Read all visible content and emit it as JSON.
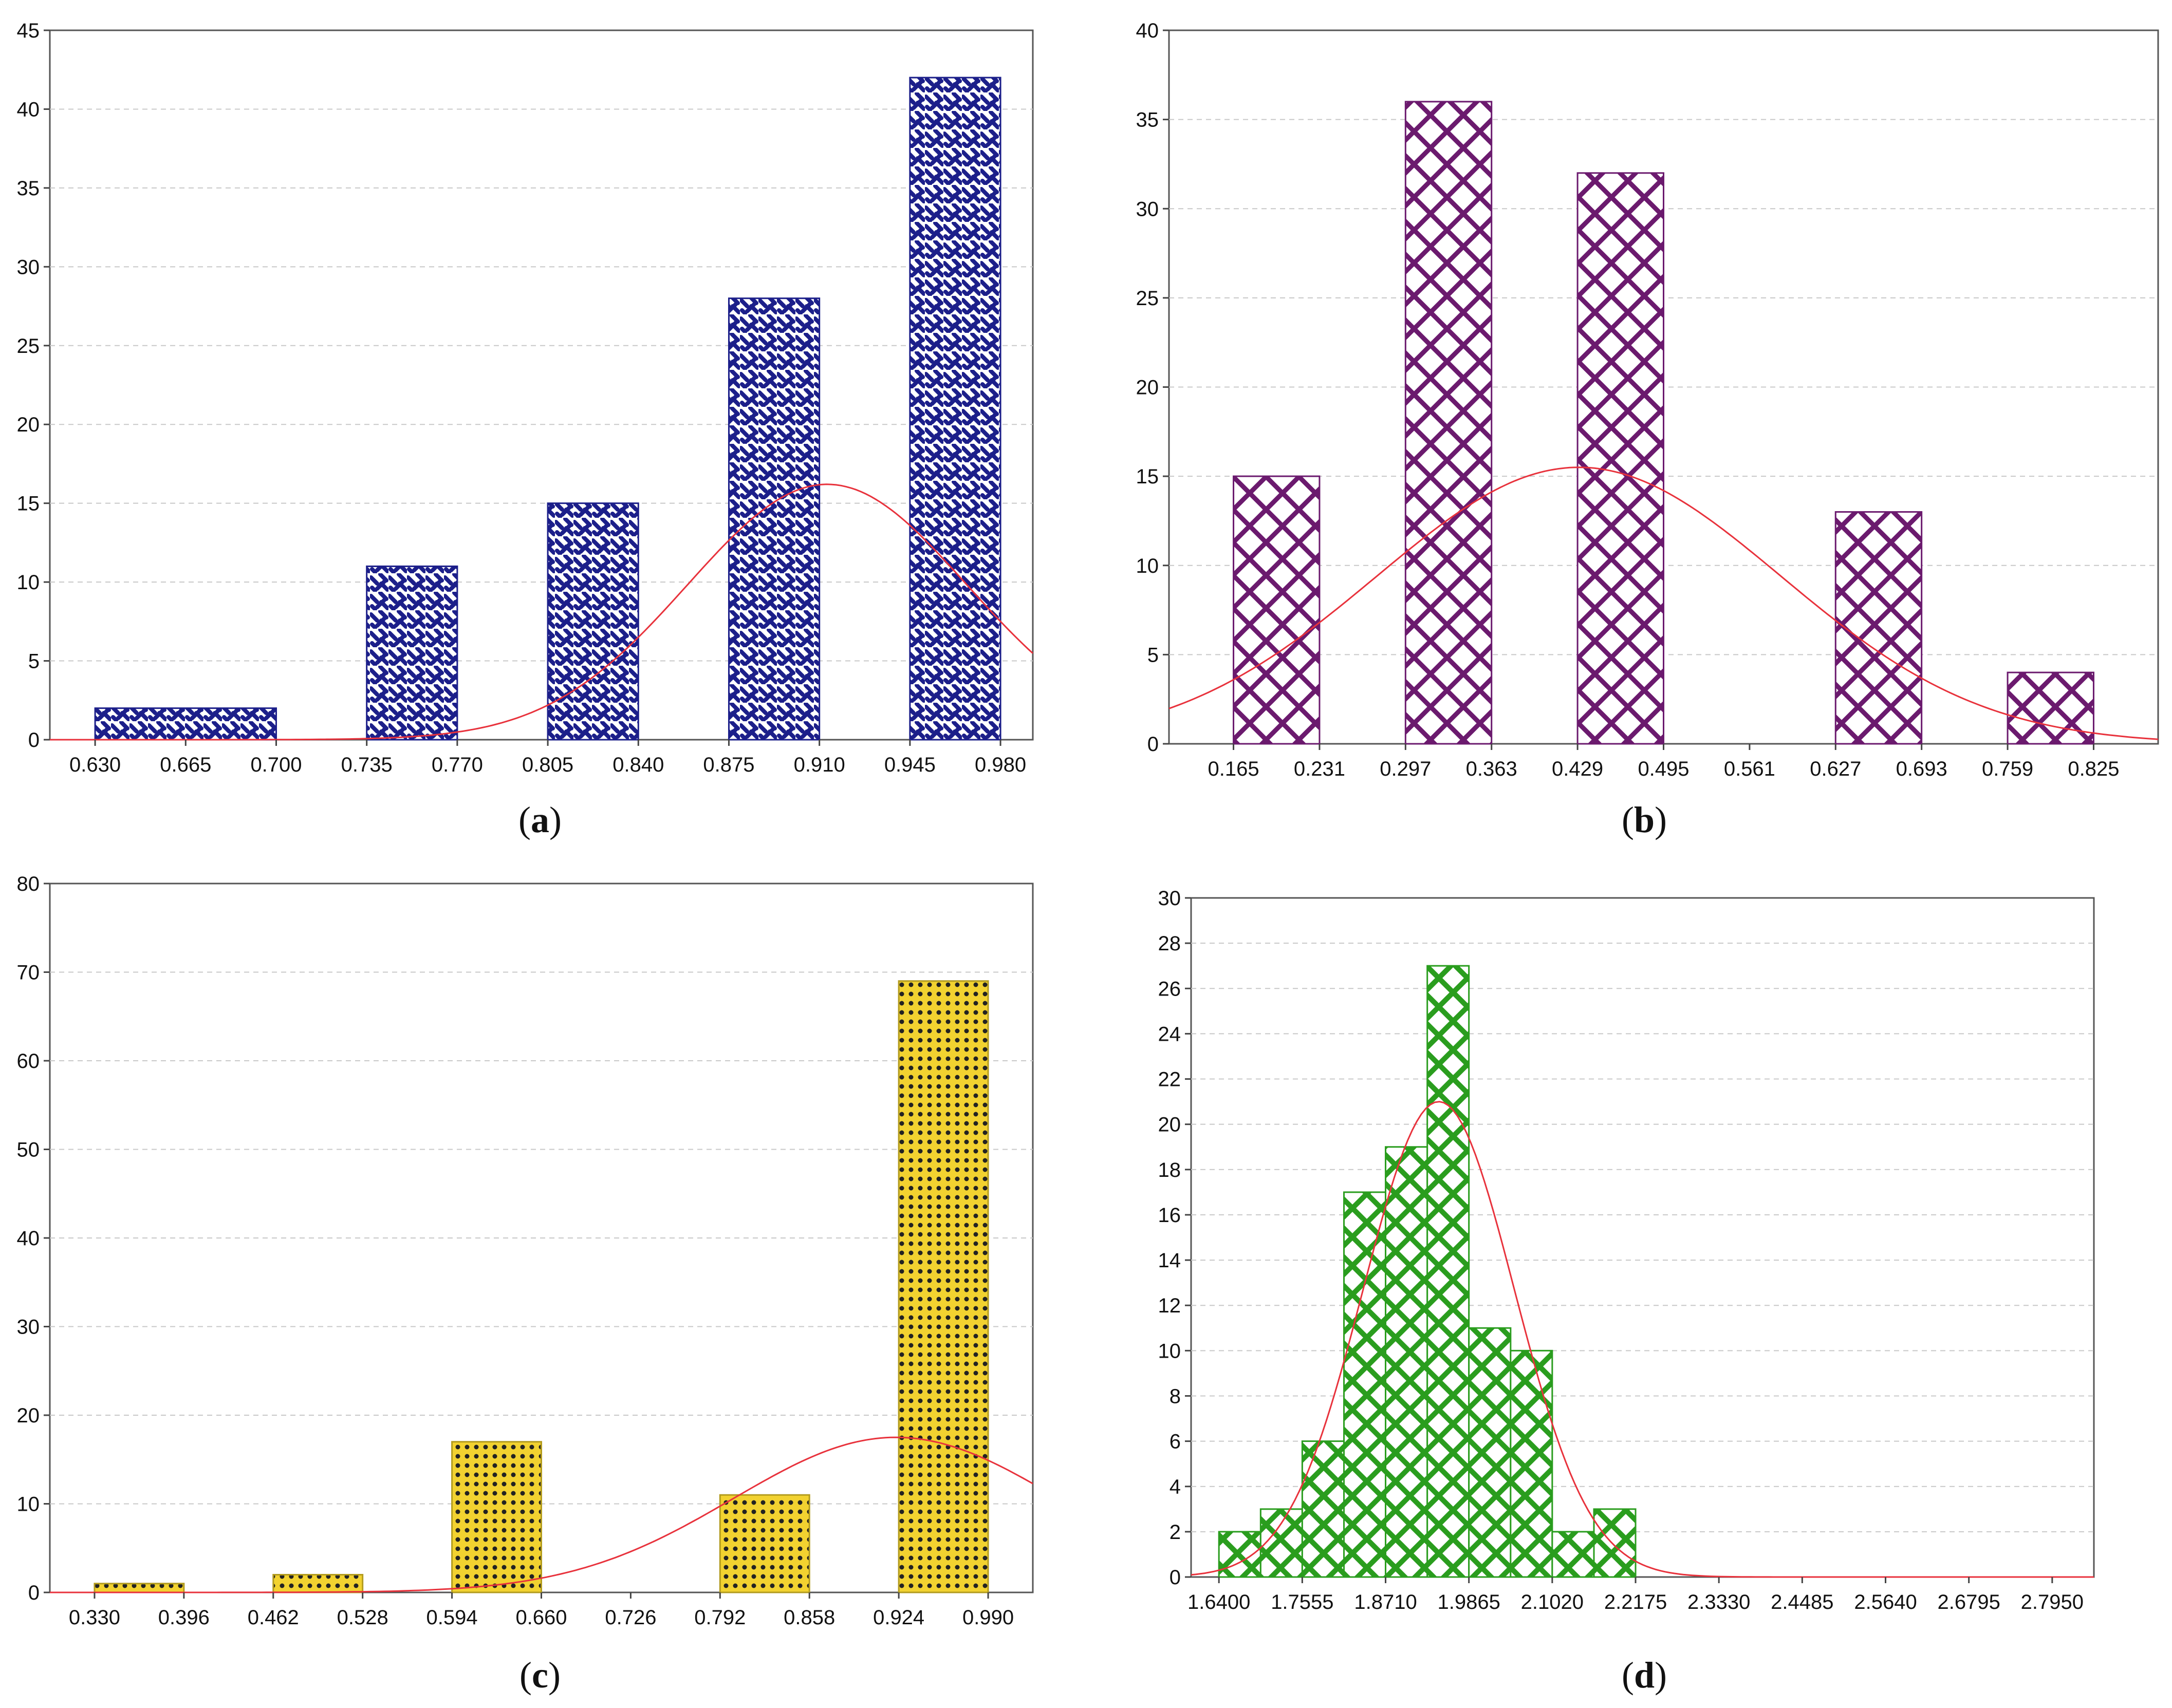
{
  "chart_data": [
    {
      "id": "a",
      "type": "bar",
      "caption": "a",
      "x_tick_labels": [
        "0.630",
        "0.665",
        "0.700",
        "0.735",
        "0.770",
        "0.805",
        "0.840",
        "0.875",
        "0.910",
        "0.945",
        "0.980"
      ],
      "xlim": [
        0.6125,
        0.9925
      ],
      "ylim": [
        0,
        45
      ],
      "y_ticks": [
        0,
        5,
        10,
        15,
        20,
        25,
        30,
        35,
        40,
        45
      ],
      "bins": [
        {
          "x0": 0.63,
          "x1": 0.7,
          "value": 2
        },
        {
          "x0": 0.735,
          "x1": 0.77,
          "value": 11
        },
        {
          "x0": 0.805,
          "x1": 0.84,
          "value": 15
        },
        {
          "x0": 0.875,
          "x1": 0.91,
          "value": 28
        },
        {
          "x0": 0.945,
          "x1": 0.98,
          "value": 42
        }
      ],
      "normal_curve": {
        "peak_x": 0.913,
        "peak_y": 16.2,
        "sigma": 0.054
      },
      "bar_color": "#1c1f8a",
      "pattern": "weave",
      "curve_color": "#e8323c"
    },
    {
      "id": "b",
      "type": "bar",
      "caption": "b",
      "x_tick_labels": [
        "0.165",
        "0.231",
        "0.297",
        "0.363",
        "0.429",
        "0.495",
        "0.561",
        "0.627",
        "0.693",
        "0.759",
        "0.825"
      ],
      "xlim": [
        0.1155,
        0.8745
      ],
      "ylim": [
        0,
        40
      ],
      "y_ticks": [
        0,
        5,
        10,
        15,
        20,
        25,
        30,
        35,
        40
      ],
      "bins": [
        {
          "x0": 0.165,
          "x1": 0.231,
          "value": 15
        },
        {
          "x0": 0.297,
          "x1": 0.363,
          "value": 36
        },
        {
          "x0": 0.429,
          "x1": 0.495,
          "value": 32
        },
        {
          "x0": 0.627,
          "x1": 0.693,
          "value": 13
        },
        {
          "x0": 0.759,
          "x1": 0.825,
          "value": 4
        }
      ],
      "normal_curve": {
        "peak_x": 0.43,
        "peak_y": 15.5,
        "sigma": 0.155
      },
      "bar_color": "#6b1a6e",
      "pattern": "crosshatch",
      "curve_color": "#e8323c"
    },
    {
      "id": "c",
      "type": "bar",
      "caption": "c",
      "x_tick_labels": [
        "0.330",
        "0.396",
        "0.462",
        "0.528",
        "0.594",
        "0.660",
        "0.726",
        "0.792",
        "0.858",
        "0.924",
        "0.990"
      ],
      "xlim": [
        0.297,
        1.023
      ],
      "ylim": [
        0,
        80
      ],
      "y_ticks": [
        0,
        10,
        20,
        30,
        40,
        50,
        60,
        70,
        80
      ],
      "bins": [
        {
          "x0": 0.33,
          "x1": 0.396,
          "value": 1
        },
        {
          "x0": 0.462,
          "x1": 0.528,
          "value": 2
        },
        {
          "x0": 0.594,
          "x1": 0.66,
          "value": 17
        },
        {
          "x0": 0.792,
          "x1": 0.858,
          "value": 11
        },
        {
          "x0": 0.924,
          "x1": 0.99,
          "value": 69
        }
      ],
      "normal_curve": {
        "peak_x": 0.922,
        "peak_y": 17.5,
        "sigma": 0.12
      },
      "bar_color": "#f2d230",
      "pattern": "dots",
      "curve_color": "#e8323c"
    },
    {
      "id": "d",
      "type": "bar",
      "caption": "d",
      "x_tick_labels": [
        "1.6400",
        "1.7555",
        "1.8710",
        "1.9865",
        "2.1020",
        "2.2175",
        "2.3330",
        "2.4485",
        "2.5640",
        "2.6795",
        "2.7950"
      ],
      "xlim": [
        1.6014,
        2.8528
      ],
      "ylim": [
        0,
        30
      ],
      "y_ticks": [
        0,
        2,
        4,
        6,
        8,
        10,
        12,
        14,
        16,
        18,
        20,
        22,
        24,
        26,
        28,
        30
      ],
      "bins": [
        {
          "x0": 1.64,
          "x1": 1.6978,
          "value": 2
        },
        {
          "x0": 1.6978,
          "x1": 1.7555,
          "value": 3
        },
        {
          "x0": 1.7555,
          "x1": 1.8133,
          "value": 6
        },
        {
          "x0": 1.8133,
          "x1": 1.871,
          "value": 17
        },
        {
          "x0": 1.871,
          "x1": 1.9288,
          "value": 19
        },
        {
          "x0": 1.9288,
          "x1": 1.9865,
          "value": 27
        },
        {
          "x0": 1.9865,
          "x1": 2.0443,
          "value": 11
        },
        {
          "x0": 2.0443,
          "x1": 2.102,
          "value": 10
        },
        {
          "x0": 2.102,
          "x1": 2.1598,
          "value": 2
        },
        {
          "x0": 2.1598,
          "x1": 2.2175,
          "value": 3
        }
      ],
      "normal_curve": {
        "peak_x": 1.9447,
        "peak_y": 21,
        "sigma": 0.1045
      },
      "bar_color": "#2a9d1e",
      "pattern": "crosshatch",
      "curve_color": "#e8323c"
    }
  ]
}
